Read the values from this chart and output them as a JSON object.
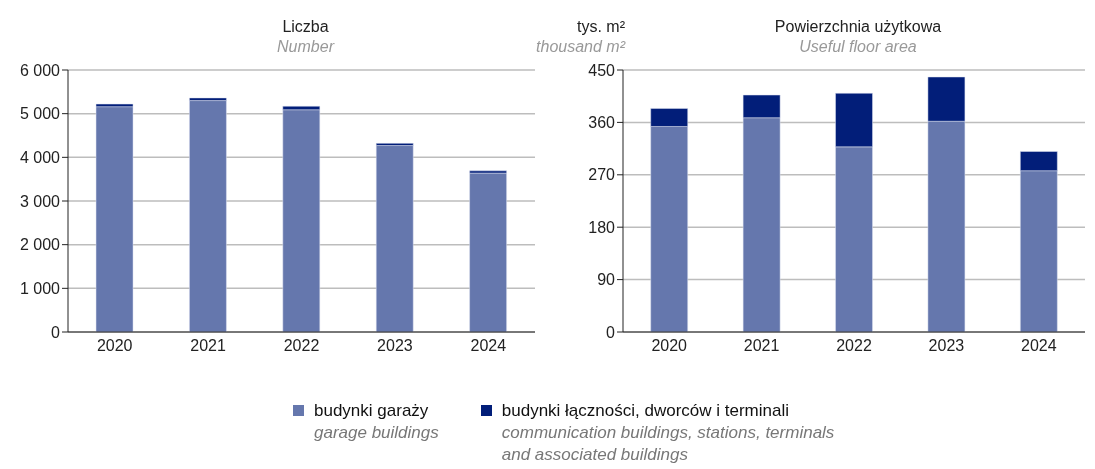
{
  "chart_data": [
    {
      "type": "bar",
      "title": "Liczba",
      "subtitle": "Number",
      "categories": [
        "2020",
        "2021",
        "2022",
        "2023",
        "2024"
      ],
      "stacked": true,
      "grid": "y",
      "legend": "bottom",
      "ylim": [
        0,
        6000
      ],
      "yticks": [
        0,
        {
          "value": 1000,
          "label": "1 000"
        },
        {
          "value": 2000,
          "label": "2 000"
        },
        {
          "value": 3000,
          "label": "3 000"
        },
        {
          "value": 4000,
          "label": "4 000"
        },
        {
          "value": 5000,
          "label": "5 000"
        },
        {
          "value": 6000,
          "label": "6 000"
        }
      ],
      "series": [
        {
          "name": "budynki garaży\ngarage buildings",
          "color": "#6577ad",
          "values": [
            5160,
            5300,
            5090,
            4270,
            3640
          ]
        },
        {
          "name": "budynki łączności, dworców i terminali\ncommunication buildings, stations, terminals\nand associated buildings",
          "color": "#021e79",
          "values": [
            60,
            60,
            80,
            50,
            50
          ]
        }
      ]
    },
    {
      "type": "bar",
      "title": "Powierzchnia użytkowa",
      "subtitle": "Useful floor area",
      "ylabel": "tys. m²\nthousand m²",
      "categories": [
        "2020",
        "2021",
        "2022",
        "2023",
        "2024"
      ],
      "stacked": true,
      "grid": "y",
      "ylim": [
        0,
        450
      ],
      "yticks": [
        0,
        90,
        180,
        270,
        360,
        450
      ],
      "series": [
        {
          "color": "#6577ad",
          "values": [
            353,
            368,
            318,
            362,
            277
          ]
        },
        {
          "color": "#021e79",
          "values": [
            31,
            39,
            92,
            76,
            33
          ]
        }
      ]
    }
  ]
}
